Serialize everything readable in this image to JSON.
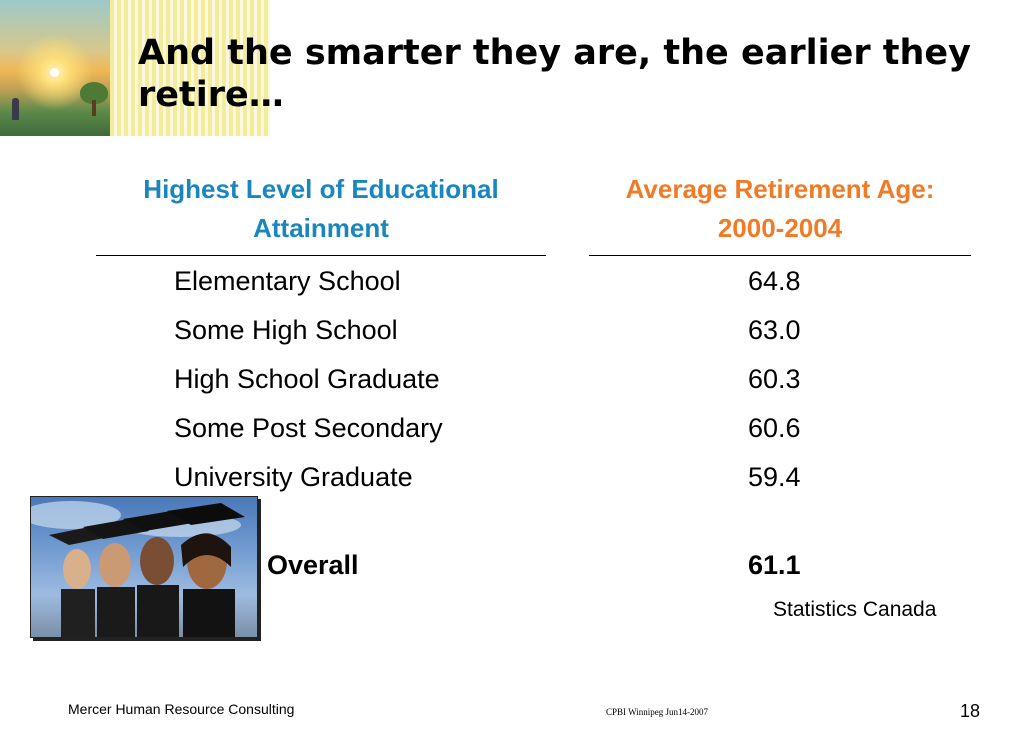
{
  "slide": {
    "title": "And the smarter they are, the earlier they retire…"
  },
  "table": {
    "headers": {
      "education": "Highest Level of Educational Attainment",
      "retirement": "Average Retirement Age: 2000-2004"
    },
    "rows": [
      {
        "label": "Elementary School",
        "value": "64.8"
      },
      {
        "label": "Some High School",
        "value": "63.0"
      },
      {
        "label": "High School Graduate",
        "value": "60.3"
      },
      {
        "label": "Some Post Secondary",
        "value": "60.6"
      },
      {
        "label": "University Graduate",
        "value": "59.4"
      }
    ],
    "overall": {
      "label": "Overall",
      "value": "61.1"
    },
    "source": "Statistics Canada"
  },
  "footer": {
    "company": "Mercer Human Resource Consulting",
    "event": "CPBI Winnipeg Jun14-2007",
    "page_number": "18"
  },
  "colors": {
    "education_header": "#1a86bf",
    "retirement_header": "#f07b27"
  }
}
